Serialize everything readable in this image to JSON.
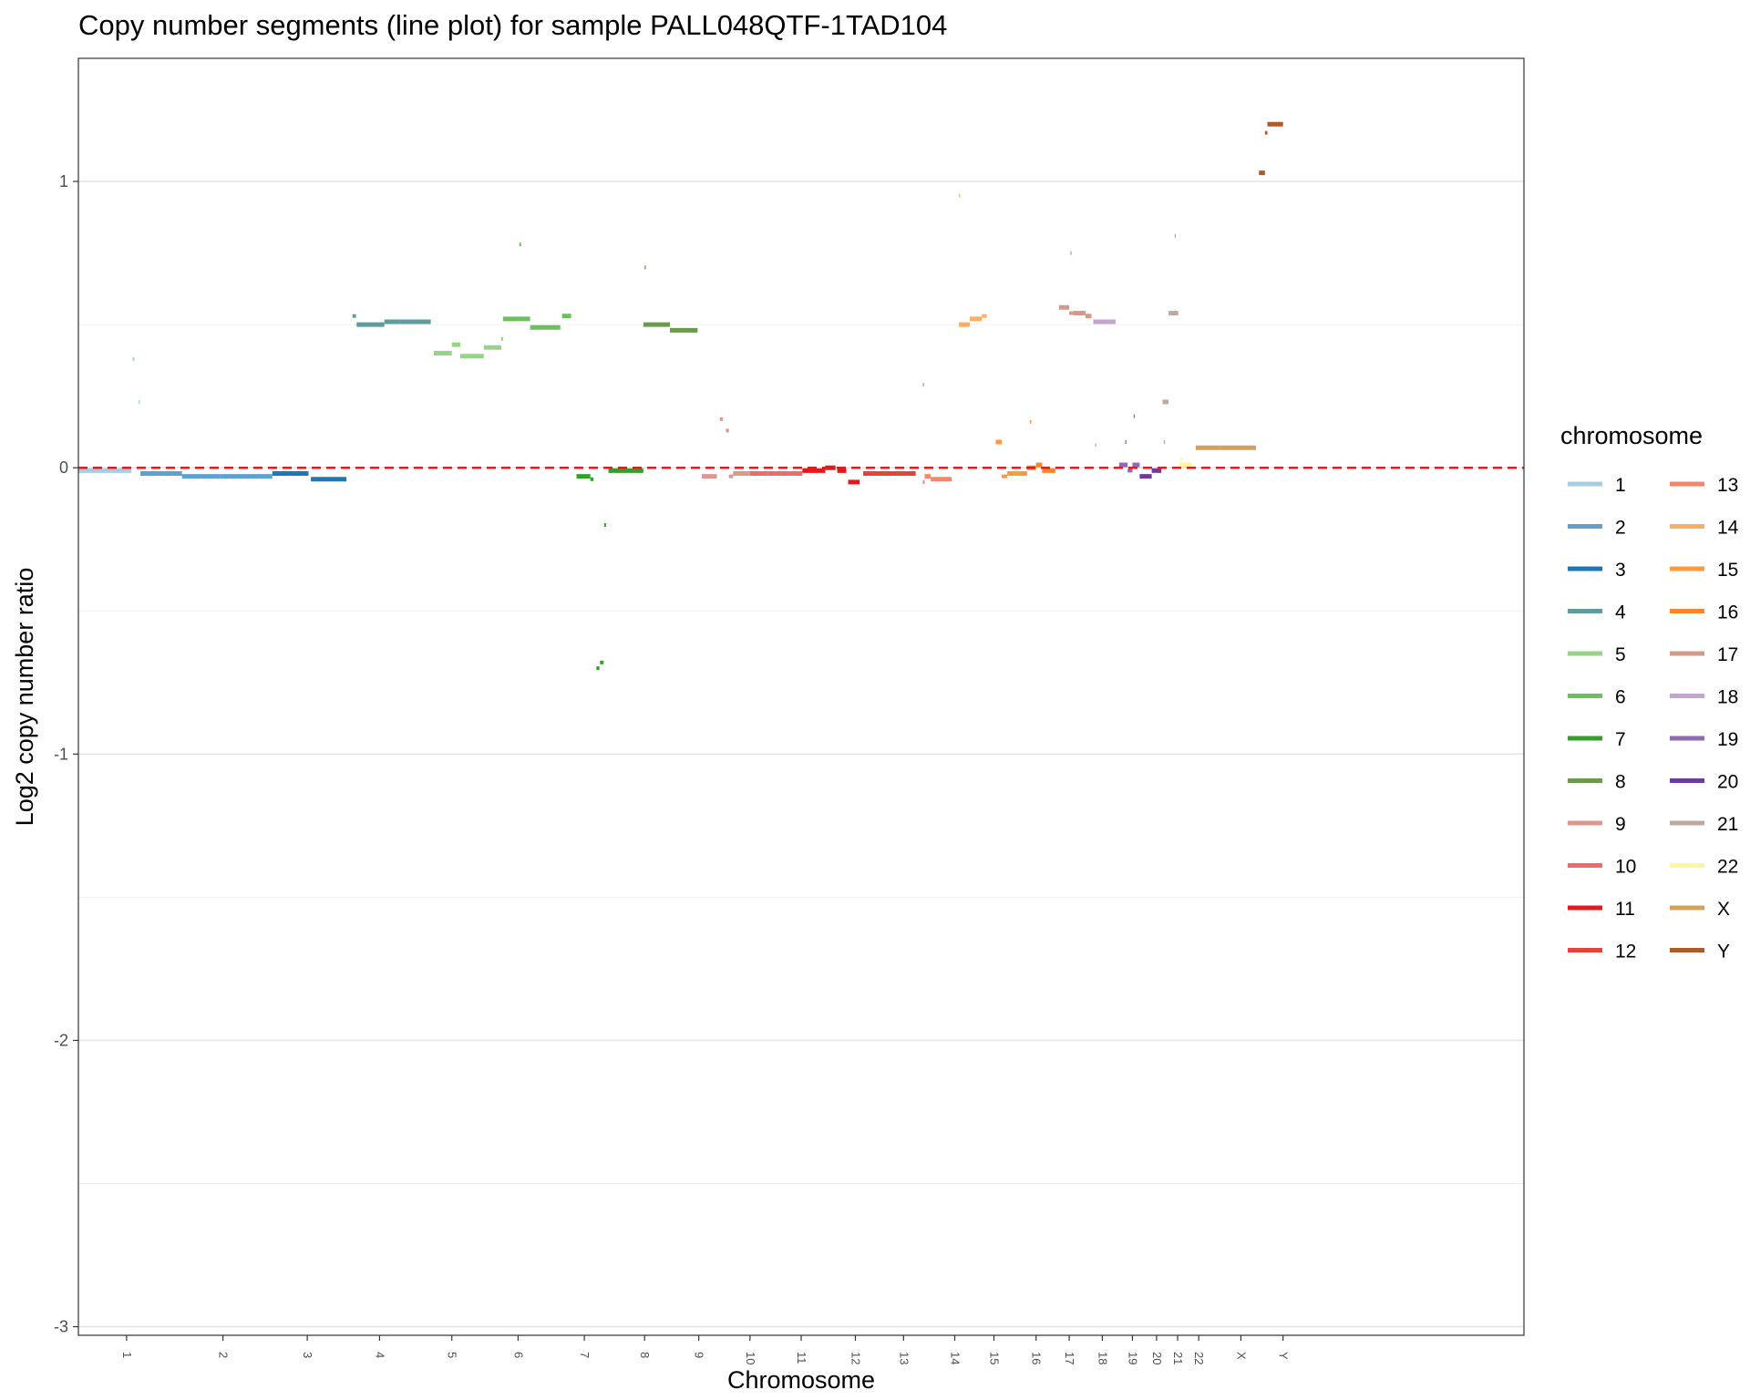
{
  "chart_data": {
    "type": "line",
    "title": "Copy number segments (line plot) for sample PALL048QTF-1TAD104",
    "xlabel": "Chromosome",
    "ylabel": "Log2 copy number ratio",
    "ylim": [
      -3.03,
      1.43
    ],
    "y_ticks": [
      1,
      0,
      -1,
      -2,
      -3
    ],
    "y_tick_labels": [
      "1",
      "0",
      "-1",
      "-2",
      "-3"
    ],
    "reference_line": {
      "y": 0,
      "style": "dashed",
      "color": "#e41a1c"
    },
    "grid": true,
    "legend": {
      "title": "chromosome",
      "position": "right",
      "columns": 2
    },
    "categories": [
      "1",
      "2",
      "3",
      "4",
      "5",
      "6",
      "7",
      "8",
      "9",
      "10",
      "11",
      "12",
      "13",
      "14",
      "15",
      "16",
      "17",
      "18",
      "19",
      "20",
      "21",
      "22",
      "X",
      "Y"
    ],
    "colors": {
      "1": "#a6cee3",
      "2": "#5fa0d1",
      "3": "#1f78b4",
      "4": "#5e9c9e",
      "5": "#98d486",
      "6": "#6cc05c",
      "7": "#33a02c",
      "8": "#6b9a4d",
      "9": "#da9891",
      "10": "#ef6b6b",
      "11": "#e31a1c",
      "12": "#e8413a",
      "13": "#f5866a",
      "14": "#fdae61",
      "15": "#fd9a3c",
      "16": "#f7862a",
      "17": "#d39a8a",
      "18": "#c5a5cf",
      "19": "#8e6ab4",
      "20": "#6a3d9a",
      "21": "#bda99e",
      "22": "#fff599",
      "X": "#d4a05a",
      "Y": "#b15928"
    },
    "x_range": [
      0,
      24
    ],
    "series": [
      {
        "chr": "1",
        "segments": [
          [
            0.0,
            0.88,
            -0.01
          ],
          [
            0.9,
            0.93,
            0.38
          ],
          [
            1.0,
            1.02,
            0.23
          ]
        ]
      },
      {
        "chr": "2",
        "segments": [
          [
            1.03,
            1.72,
            -0.02
          ],
          [
            1.72,
            2.35,
            -0.03
          ],
          [
            2.35,
            3.22,
            -0.03
          ]
        ]
      },
      {
        "chr": "3",
        "segments": [
          [
            3.22,
            3.82,
            -0.02
          ],
          [
            3.86,
            4.45,
            -0.04
          ]
        ]
      },
      {
        "chr": "4",
        "segments": [
          [
            4.55,
            4.61,
            0.53
          ],
          [
            4.62,
            5.08,
            0.5
          ],
          [
            5.08,
            5.35,
            0.51
          ],
          [
            5.35,
            5.85,
            0.51
          ]
        ]
      },
      {
        "chr": "5",
        "segments": [
          [
            5.9,
            6.2,
            0.4
          ],
          [
            6.2,
            6.34,
            0.43
          ],
          [
            6.34,
            6.73,
            0.39
          ],
          [
            6.73,
            7.02,
            0.42
          ],
          [
            7.02,
            7.05,
            0.45
          ]
        ]
      },
      {
        "chr": "6",
        "segments": [
          [
            7.05,
            7.3,
            0.52
          ],
          [
            7.3,
            7.5,
            0.52
          ],
          [
            7.5,
            8.0,
            0.49
          ],
          [
            8.03,
            8.18,
            0.53
          ],
          [
            7.32,
            7.35,
            0.78
          ]
        ]
      },
      {
        "chr": "7",
        "segments": [
          [
            8.27,
            8.5,
            -0.03
          ],
          [
            8.5,
            8.55,
            -0.04
          ],
          [
            8.6,
            8.65,
            -0.7
          ],
          [
            8.66,
            8.72,
            -0.68
          ],
          [
            8.73,
            8.76,
            -0.2
          ],
          [
            8.8,
            9.38,
            -0.01
          ]
        ]
      },
      {
        "chr": "8",
        "segments": [
          [
            9.38,
            9.82,
            0.5
          ],
          [
            9.82,
            10.28,
            0.48
          ],
          [
            9.4,
            9.42,
            0.7
          ]
        ]
      },
      {
        "chr": "9",
        "segments": [
          [
            10.35,
            10.6,
            -0.03
          ],
          [
            10.65,
            10.7,
            0.17
          ],
          [
            10.75,
            10.8,
            0.13
          ],
          [
            10.8,
            10.87,
            -0.03
          ],
          [
            10.87,
            11.15,
            -0.02
          ]
        ]
      },
      {
        "chr": "10",
        "segments": [
          [
            11.15,
            11.45,
            -0.02
          ],
          [
            11.45,
            12.02,
            -0.02
          ]
        ]
      },
      {
        "chr": "11",
        "segments": [
          [
            12.02,
            12.4,
            -0.01
          ],
          [
            12.4,
            12.57,
            0.0
          ],
          [
            12.6,
            12.75,
            -0.01
          ],
          [
            12.78,
            12.97,
            -0.05
          ]
        ]
      },
      {
        "chr": "12",
        "segments": [
          [
            13.03,
            13.9,
            -0.02
          ],
          [
            13.3,
            13.9,
            -0.02
          ]
        ]
      },
      {
        "chr": "13",
        "segments": [
          [
            14.02,
            14.05,
            -0.05
          ],
          [
            14.05,
            14.15,
            -0.03
          ],
          [
            14.15,
            14.5,
            -0.04
          ],
          [
            14.02,
            14.04,
            0.29
          ]
        ]
      },
      {
        "chr": "14",
        "segments": [
          [
            14.62,
            14.8,
            0.5
          ],
          [
            14.8,
            15.0,
            0.52
          ],
          [
            15.0,
            15.08,
            0.53
          ],
          [
            14.62,
            14.64,
            0.95
          ]
        ]
      },
      {
        "chr": "15",
        "segments": [
          [
            15.23,
            15.33,
            0.09
          ],
          [
            15.33,
            15.42,
            -0.03
          ],
          [
            15.42,
            15.75,
            -0.02
          ]
        ]
      },
      {
        "chr": "16",
        "segments": [
          [
            15.75,
            15.9,
            0.0
          ],
          [
            15.8,
            15.82,
            0.16
          ],
          [
            15.9,
            16.0,
            0.01
          ],
          [
            16.0,
            16.22,
            -0.01
          ]
        ]
      },
      {
        "chr": "17",
        "segments": [
          [
            16.28,
            16.45,
            0.56
          ],
          [
            16.45,
            16.52,
            0.54
          ],
          [
            16.52,
            16.72,
            0.54
          ],
          [
            16.72,
            16.82,
            0.53
          ],
          [
            16.47,
            16.49,
            0.75
          ]
        ]
      },
      {
        "chr": "18",
        "segments": [
          [
            16.85,
            17.22,
            0.51
          ],
          [
            16.88,
            16.9,
            0.08
          ]
        ]
      },
      {
        "chr": "19",
        "segments": [
          [
            17.28,
            17.42,
            0.01
          ],
          [
            17.42,
            17.5,
            -0.01
          ],
          [
            17.5,
            17.62,
            0.01
          ],
          [
            17.38,
            17.4,
            0.09
          ],
          [
            17.52,
            17.54,
            0.18
          ]
        ]
      },
      {
        "chr": "20",
        "segments": [
          [
            17.62,
            17.82,
            -0.03
          ],
          [
            17.82,
            17.98,
            -0.01
          ]
        ]
      },
      {
        "chr": "21",
        "segments": [
          [
            18.0,
            18.1,
            0.23
          ],
          [
            18.1,
            18.26,
            0.54
          ],
          [
            18.02,
            18.04,
            0.09
          ],
          [
            18.2,
            18.22,
            0.81
          ]
        ]
      },
      {
        "chr": "22",
        "segments": [
          [
            18.28,
            18.48,
            0.01
          ],
          [
            18.3,
            18.32,
            0.03
          ]
        ]
      },
      {
        "chr": "X",
        "segments": [
          [
            18.55,
            18.95,
            0.07
          ],
          [
            18.95,
            19.55,
            0.07
          ]
        ]
      },
      {
        "chr": "Y",
        "segments": [
          [
            19.6,
            19.7,
            1.03
          ],
          [
            19.7,
            19.74,
            1.17
          ],
          [
            19.74,
            20.0,
            1.2
          ]
        ]
      }
    ],
    "x_tick_positions": [
      0.8,
      2.4,
      3.8,
      5.0,
      6.2,
      7.3,
      8.4,
      9.4,
      10.3,
      11.15,
      12.0,
      12.9,
      13.7,
      14.55,
      15.2,
      15.9,
      16.45,
      17.0,
      17.5,
      17.9,
      18.25,
      18.6,
      19.3,
      20.0
    ]
  }
}
